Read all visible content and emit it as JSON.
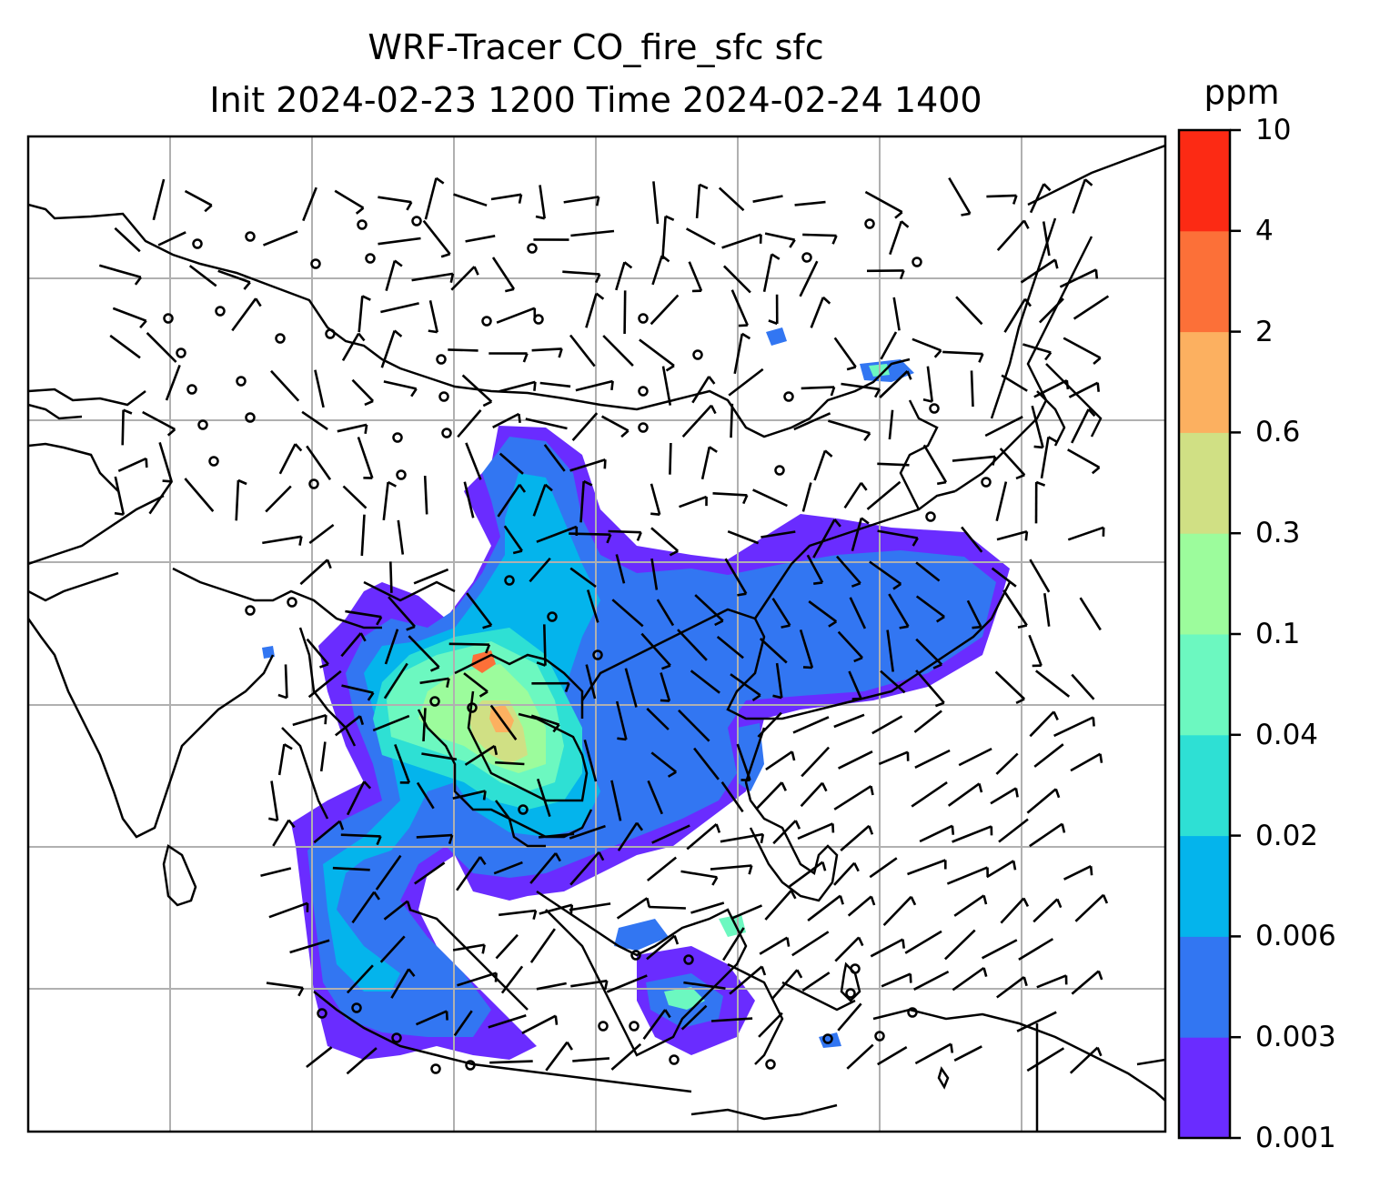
{
  "title": {
    "line1": "WRF-Tracer CO_fire_sfc sfc",
    "line2": "Init 2024-02-23 1200 Time 2024-02-24 1400"
  },
  "colorbar": {
    "unit": "ppm",
    "levels": [
      "0.001",
      "0.003",
      "0.006",
      "0.02",
      "0.04",
      "0.1",
      "0.3",
      "0.6",
      "2",
      "4",
      "10"
    ],
    "colors": [
      "#6a2cff",
      "#3276f2",
      "#04b4ec",
      "#2ee0d4",
      "#6cf8c0",
      "#9cfc9c",
      "#d0e084",
      "#fcb060",
      "#fc7038",
      "#fc2a14"
    ]
  },
  "map": {
    "gridlines": true,
    "coastline_color": "#000000",
    "wind_barbs": true,
    "calm_markers": true
  }
}
